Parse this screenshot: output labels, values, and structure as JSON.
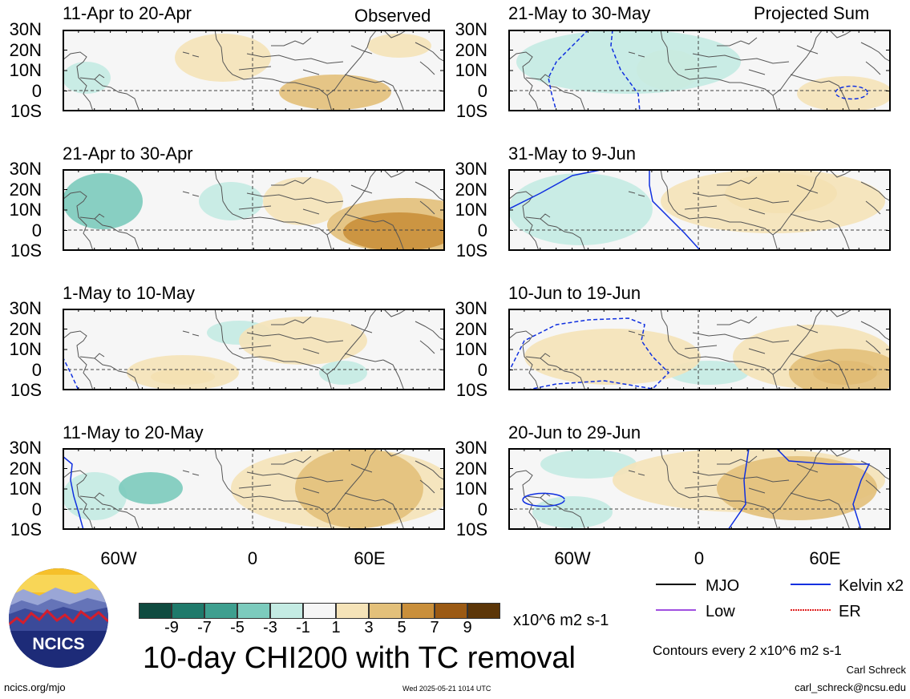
{
  "panels_left": [
    {
      "title": "11-Apr to 20-Apr",
      "tag": "Observed"
    },
    {
      "title": "21-Apr to 30-Apr",
      "tag": ""
    },
    {
      "title": "1-May to 10-May",
      "tag": ""
    },
    {
      "title": "11-May to 20-May",
      "tag": ""
    }
  ],
  "panels_right": [
    {
      "title": "21-May to 30-May",
      "tag": "Projected Sum"
    },
    {
      "title": "31-May to 9-Jun",
      "tag": ""
    },
    {
      "title": "10-Jun to 19-Jun",
      "tag": ""
    },
    {
      "title": "20-Jun to 29-Jun",
      "tag": ""
    }
  ],
  "lat_labels": [
    "30N",
    "20N",
    "10N",
    "0",
    "10S"
  ],
  "lon_labels": [
    "60W",
    "0",
    "60E"
  ],
  "colorbar": {
    "labels": [
      "-9",
      "-7",
      "-5",
      "-3",
      "-1",
      "1",
      "3",
      "5",
      "7",
      "9"
    ],
    "colors": [
      "#0f4b40",
      "#1f7a6b",
      "#3e9f8f",
      "#7ccbbd",
      "#c4ebe3",
      "#f6f6f6",
      "#f5e3b8",
      "#e3c07a",
      "#c98f3b",
      "#9b5a14",
      "#5c3608"
    ],
    "units": "x10^6 m2 s-1"
  },
  "main_title": "10-day CHI200 with TC removal",
  "legend": [
    {
      "label": "MJO",
      "color": "#000000"
    },
    {
      "label": "Kelvin x2",
      "color": "#1030e0"
    },
    {
      "label": "Low",
      "color": "#a050e0"
    },
    {
      "label": "ER",
      "color": "#e02020"
    }
  ],
  "contour_note": "Contours every 2 x10^6 m2 s-1",
  "author": "Carl Schreck",
  "email": "carl_schreck@ncsu.edu",
  "site": "ncics.org/mjo",
  "timestamp": "Wed 2025-05-21 1014 UTC",
  "logo_text": "NCICS"
}
